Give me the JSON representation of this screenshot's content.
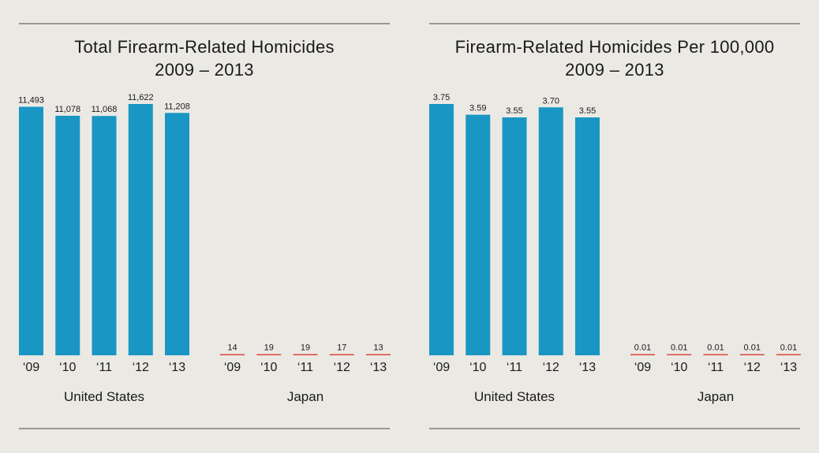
{
  "colors": {
    "us_bar": "#1a96c4",
    "japan_bar": "#d9473b",
    "background": "#ebe9e4",
    "text": "#1a1a1a"
  },
  "chart_data": [
    {
      "type": "bar",
      "title": "Total Firearm-Related Homicides",
      "subtitle": "2009 – 2013",
      "groups": [
        {
          "name": "United States",
          "categories": [
            "‘09",
            "‘10",
            "‘11",
            "‘12",
            "‘13"
          ],
          "values": [
            11493,
            11078,
            11068,
            11622,
            11208
          ],
          "labels": [
            "11,493",
            "11,078",
            "11,068",
            "11,622",
            "11,208"
          ]
        },
        {
          "name": "Japan",
          "categories": [
            "‘09",
            "‘10",
            "‘11",
            "‘12",
            "‘13"
          ],
          "values": [
            14,
            19,
            19,
            17,
            13
          ],
          "labels": [
            "14",
            "19",
            "19",
            "17",
            "13"
          ]
        }
      ],
      "ylim": [
        0,
        11622
      ],
      "grid": false
    },
    {
      "type": "bar",
      "title": "Firearm-Related Homicides Per 100,000",
      "subtitle": "2009 – 2013",
      "groups": [
        {
          "name": "United States",
          "categories": [
            "‘09",
            "‘10",
            "‘11",
            "‘12",
            "‘13"
          ],
          "values": [
            3.75,
            3.59,
            3.55,
            3.7,
            3.55
          ],
          "labels": [
            "3.75",
            "3.59",
            "3.55",
            "3.70",
            "3.55"
          ]
        },
        {
          "name": "Japan",
          "categories": [
            "‘09",
            "‘10",
            "‘11",
            "‘12",
            "‘13"
          ],
          "values": [
            0.01,
            0.01,
            0.01,
            0.01,
            0.01
          ],
          "labels": [
            "0.01",
            "0.01",
            "0.01",
            "0.01",
            "0.01"
          ]
        }
      ],
      "ylim": [
        0,
        3.75
      ],
      "grid": false
    }
  ]
}
